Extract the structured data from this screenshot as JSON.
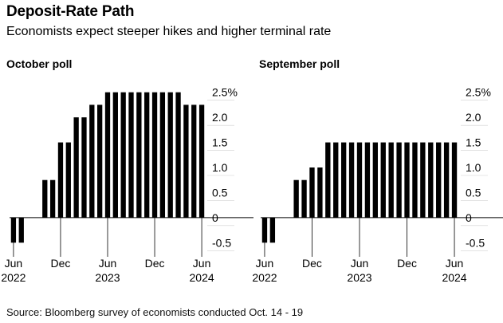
{
  "title": "Deposit-Rate Path",
  "subtitle": "Economists expect steeper hikes and higher terminal rate",
  "source": "Source: Bloomberg survey of economists conducted Oct. 14 - 19",
  "colors": {
    "bar": "#000000",
    "grid": "#000000"
  },
  "chart_data": [
    {
      "type": "bar",
      "title": "October poll",
      "x": [
        "Jun 2022",
        "Jul 2022",
        "Aug 2022",
        "Sep 2022",
        "Oct 2022",
        "Nov 2022",
        "Dec 2022",
        "Jan 2023",
        "Feb 2023",
        "Mar 2023",
        "Apr 2023",
        "May 2023",
        "Jun 2023",
        "Jul 2023",
        "Aug 2023",
        "Sep 2023",
        "Oct 2023",
        "Nov 2023",
        "Dec 2023",
        "Jan 2024",
        "Feb 2024",
        "Mar 2024",
        "Apr 2024",
        "May 2024",
        "Jun 2024"
      ],
      "values": [
        -0.5,
        -0.5,
        0.0,
        0.0,
        0.75,
        0.75,
        1.5,
        1.5,
        2.0,
        2.0,
        2.25,
        2.25,
        2.5,
        2.5,
        2.5,
        2.5,
        2.5,
        2.5,
        2.5,
        2.5,
        2.5,
        2.5,
        2.25,
        2.25,
        2.25
      ],
      "ylim": [
        -0.75,
        2.75
      ],
      "yticks": [
        -0.5,
        0,
        0.5,
        1.0,
        1.5,
        2.0,
        2.5
      ],
      "ytick_labels": [
        "-0.5",
        "0",
        "0.5",
        "1.0",
        "1.5",
        "2.0",
        "2.5%"
      ],
      "xtick_labels": [
        {
          "index": 0,
          "line1": "Jun",
          "line2": "2022"
        },
        {
          "index": 6,
          "line1": "Dec",
          "line2": ""
        },
        {
          "index": 12,
          "line1": "Jun",
          "line2": "2023"
        },
        {
          "index": 18,
          "line1": "Dec",
          "line2": ""
        },
        {
          "index": 24,
          "line1": "Jun",
          "line2": "2024"
        }
      ]
    },
    {
      "type": "bar",
      "title": "September poll",
      "x": [
        "Jun 2022",
        "Jul 2022",
        "Aug 2022",
        "Sep 2022",
        "Oct 2022",
        "Nov 2022",
        "Dec 2022",
        "Jan 2023",
        "Feb 2023",
        "Mar 2023",
        "Apr 2023",
        "May 2023",
        "Jun 2023",
        "Jul 2023",
        "Aug 2023",
        "Sep 2023",
        "Oct 2023",
        "Nov 2023",
        "Dec 2023",
        "Jan 2024",
        "Feb 2024",
        "Mar 2024",
        "Apr 2024",
        "May 2024",
        "Jun 2024"
      ],
      "values": [
        -0.5,
        -0.5,
        0.0,
        0.0,
        0.75,
        0.75,
        1.0,
        1.0,
        1.5,
        1.5,
        1.5,
        1.5,
        1.5,
        1.5,
        1.5,
        1.5,
        1.5,
        1.5,
        1.5,
        1.5,
        1.5,
        1.5,
        1.5,
        1.5,
        1.5
      ],
      "ylim": [
        -0.75,
        2.75
      ],
      "yticks": [
        -0.5,
        0,
        0.5,
        1.0,
        1.5,
        2.0,
        2.5
      ],
      "ytick_labels": [
        "-0.5",
        "0",
        "0.5",
        "1.0",
        "1.5",
        "2.0",
        "2.5%"
      ],
      "xtick_labels": [
        {
          "index": 0,
          "line1": "Jun",
          "line2": "2022"
        },
        {
          "index": 6,
          "line1": "Dec",
          "line2": ""
        },
        {
          "index": 12,
          "line1": "Jun",
          "line2": "2023"
        },
        {
          "index": 18,
          "line1": "Dec",
          "line2": ""
        },
        {
          "index": 24,
          "line1": "Jun",
          "line2": "2024"
        }
      ]
    }
  ]
}
